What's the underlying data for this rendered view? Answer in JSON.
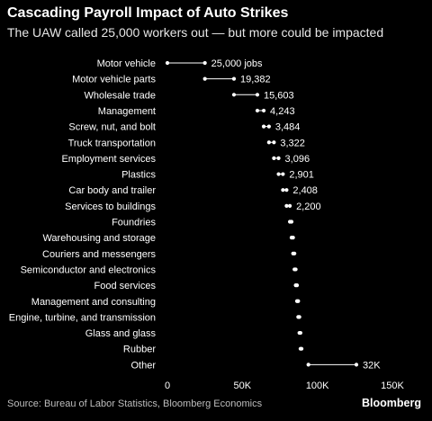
{
  "header": {
    "title": "Cascading Payroll Impact of Auto Strikes",
    "subtitle": "The UAW called 25,000 workers out — but more could be impacted"
  },
  "footer": {
    "source": "Source: Bureau of Labor Statistics, Bloomberg Economics",
    "brand": "Bloomberg"
  },
  "colors": {
    "background": "#000000",
    "text": "#ffffff",
    "muted": "#bdbdbd",
    "dot": "#ffffff",
    "line": "#ffffff",
    "axis_tick": "#9a9a9a"
  },
  "chart_data": {
    "type": "dot-range",
    "title": "Cascading Payroll Impact of Auto Strikes",
    "subtitle": "The UAW called 25,000 workers out — but more could be impacted",
    "xlabel": "",
    "ylabel": "",
    "xlim": [
      0,
      150000
    ],
    "x_ticks": [
      0,
      50000,
      100000,
      150000
    ],
    "x_tick_labels": [
      "0",
      "50K",
      "100K",
      "150K"
    ],
    "grid": false,
    "legend": "none",
    "categories": [
      "Motor vehicle",
      "Motor vehicle parts",
      "Wholesale trade",
      "Management",
      "Screw, nut, and bolt",
      "Truck transportation",
      "Employment services",
      "Plastics",
      "Car body and trailer",
      "Services to buildings",
      "Foundries",
      "Warehousing and storage",
      "Couriers and messengers",
      "Semiconductor and electronics",
      "Food services",
      "Management and consulting",
      "Engine, turbine, and transmission",
      "Glass and glass",
      "Rubber",
      "Other"
    ],
    "start": [
      0,
      25000,
      44382,
      59985,
      64228,
      67712,
      71034,
      74130,
      77031,
      79439,
      81639,
      82780,
      83780,
      84700,
      85550,
      86400,
      87200,
      88000,
      88750,
      94000
    ],
    "end": [
      25000,
      44382,
      59985,
      64228,
      67712,
      71034,
      74130,
      77031,
      79439,
      81639,
      82780,
      83780,
      84700,
      85550,
      86400,
      87200,
      88000,
      88750,
      89450,
      126000
    ],
    "values": [
      25000,
      19382,
      15603,
      4243,
      3484,
      3322,
      3096,
      2901,
      2408,
      2200,
      null,
      null,
      null,
      null,
      null,
      null,
      null,
      null,
      null,
      32000
    ],
    "value_labels": [
      "25,000 jobs",
      "19,382",
      "15,603",
      "4,243",
      "3,484",
      "3,322",
      "3,096",
      "2,901",
      "2,408",
      "2,200",
      "",
      "",
      "",
      "",
      "",
      "",
      "",
      "",
      "",
      "32K"
    ]
  }
}
